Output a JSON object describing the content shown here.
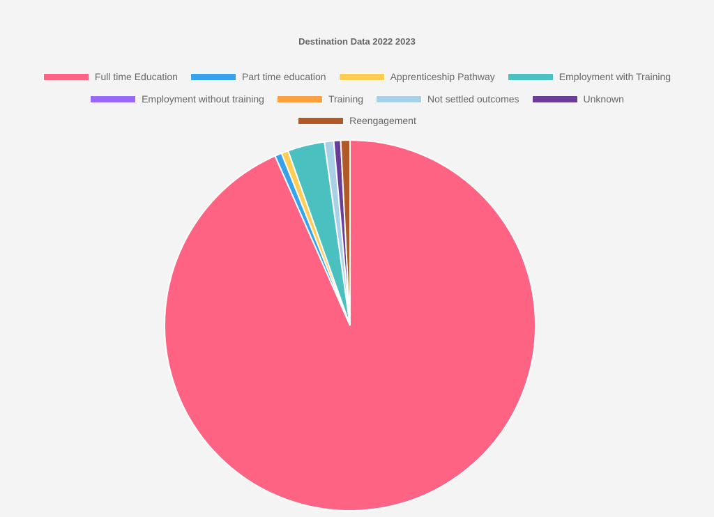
{
  "chart_data": {
    "type": "pie",
    "title": "Destination Data 2022 2023",
    "legend_position": "top",
    "slices": [
      {
        "label": "Full time Education",
        "value": 93.0,
        "color": "#ff6384"
      },
      {
        "label": "Part time education",
        "value": 0.6,
        "color": "#36a2eb"
      },
      {
        "label": "Apprenticeship Pathway",
        "value": 0.6,
        "color": "#ffcd56"
      },
      {
        "label": "Employment with Training",
        "value": 3.2,
        "color": "#4bc0c0"
      },
      {
        "label": "Employment without training",
        "value": 0.0,
        "color": "#9966ff"
      },
      {
        "label": "Training",
        "value": 0.0,
        "color": "#ff9f40"
      },
      {
        "label": "Not settled outcomes",
        "value": 0.8,
        "color": "#a8d1e7"
      },
      {
        "label": "Unknown",
        "value": 0.6,
        "color": "#6a3d9a"
      },
      {
        "label": "Reengagement",
        "value": 0.8,
        "color": "#b15928"
      }
    ]
  }
}
